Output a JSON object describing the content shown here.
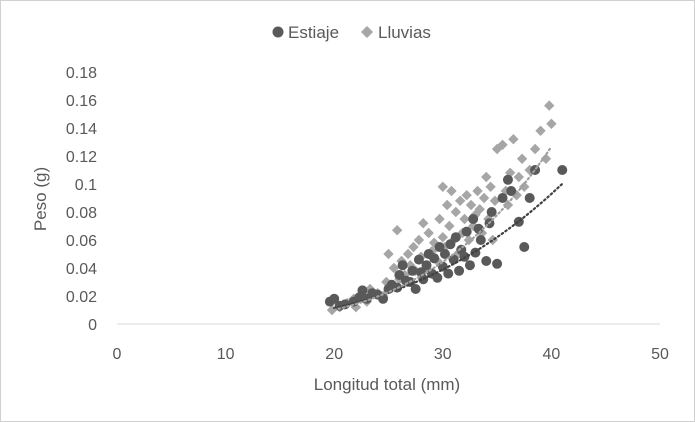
{
  "chart_data": {
    "type": "scatter",
    "title": "",
    "xlabel": "Longitud total (mm)",
    "ylabel": "Peso (g)",
    "xlim": [
      0,
      50
    ],
    "ylim": [
      0,
      0.18
    ],
    "x_ticks": [
      "0",
      "10",
      "20",
      "30",
      "40",
      "50"
    ],
    "y_ticks": [
      "0",
      "0.02",
      "0.04",
      "0.06",
      "0.08",
      "0.1",
      "0.12",
      "0.14",
      "0.16",
      "0.18"
    ],
    "grid": false,
    "legend_position": "top",
    "series": [
      {
        "name": "Estiaje",
        "marker": "circle",
        "color": "#595959",
        "trendline": {
          "type": "power",
          "style": "dotted",
          "x_range": [
            20,
            41
          ],
          "a": 1.3e-06,
          "b": 3.03
        },
        "points": [
          [
            19.6,
            0.016
          ],
          [
            20.0,
            0.018
          ],
          [
            20.5,
            0.013
          ],
          [
            21.0,
            0.014
          ],
          [
            21.8,
            0.016
          ],
          [
            22.3,
            0.019
          ],
          [
            22.6,
            0.024
          ],
          [
            23.0,
            0.018
          ],
          [
            23.5,
            0.022
          ],
          [
            24.0,
            0.021
          ],
          [
            24.5,
            0.018
          ],
          [
            25.0,
            0.025
          ],
          [
            25.3,
            0.028
          ],
          [
            25.8,
            0.026
          ],
          [
            26.0,
            0.035
          ],
          [
            26.3,
            0.042
          ],
          [
            26.6,
            0.031
          ],
          [
            27.0,
            0.03
          ],
          [
            27.2,
            0.038
          ],
          [
            27.5,
            0.025
          ],
          [
            27.8,
            0.046
          ],
          [
            28.0,
            0.037
          ],
          [
            28.2,
            0.032
          ],
          [
            28.5,
            0.042
          ],
          [
            28.7,
            0.05
          ],
          [
            29.0,
            0.036
          ],
          [
            29.2,
            0.047
          ],
          [
            29.5,
            0.033
          ],
          [
            29.7,
            0.055
          ],
          [
            30.0,
            0.041
          ],
          [
            30.2,
            0.05
          ],
          [
            30.5,
            0.036
          ],
          [
            30.7,
            0.057
          ],
          [
            31.0,
            0.046
          ],
          [
            31.2,
            0.062
          ],
          [
            31.5,
            0.038
          ],
          [
            31.7,
            0.053
          ],
          [
            32.0,
            0.048
          ],
          [
            32.2,
            0.066
          ],
          [
            32.5,
            0.042
          ],
          [
            32.8,
            0.075
          ],
          [
            33.0,
            0.051
          ],
          [
            33.3,
            0.068
          ],
          [
            33.5,
            0.06
          ],
          [
            34.0,
            0.045
          ],
          [
            34.3,
            0.072
          ],
          [
            34.5,
            0.08
          ],
          [
            35.0,
            0.043
          ],
          [
            35.5,
            0.09
          ],
          [
            36.0,
            0.103
          ],
          [
            36.3,
            0.095
          ],
          [
            37.0,
            0.073
          ],
          [
            37.5,
            0.055
          ],
          [
            38.0,
            0.09
          ],
          [
            38.5,
            0.11
          ],
          [
            41.0,
            0.11
          ]
        ]
      },
      {
        "name": "Lluvias",
        "marker": "diamond",
        "color": "#a6a6a6",
        "trendline": {
          "type": "power",
          "style": "dotted",
          "x_range": [
            20,
            40
          ],
          "a": 1.8e-07,
          "b": 3.65
        },
        "points": [
          [
            19.8,
            0.01
          ],
          [
            20.5,
            0.012
          ],
          [
            21.2,
            0.015
          ],
          [
            21.8,
            0.018
          ],
          [
            22.0,
            0.012
          ],
          [
            22.5,
            0.02
          ],
          [
            23.0,
            0.016
          ],
          [
            23.3,
            0.025
          ],
          [
            24.0,
            0.022
          ],
          [
            24.5,
            0.02
          ],
          [
            24.8,
            0.03
          ],
          [
            25.0,
            0.05
          ],
          [
            25.2,
            0.028
          ],
          [
            25.5,
            0.04
          ],
          [
            25.8,
            0.067
          ],
          [
            26.0,
            0.032
          ],
          [
            26.2,
            0.045
          ],
          [
            26.5,
            0.035
          ],
          [
            26.8,
            0.05
          ],
          [
            27.0,
            0.042
          ],
          [
            27.3,
            0.055
          ],
          [
            27.5,
            0.038
          ],
          [
            27.8,
            0.06
          ],
          [
            28.0,
            0.048
          ],
          [
            28.2,
            0.072
          ],
          [
            28.5,
            0.04
          ],
          [
            28.7,
            0.065
          ],
          [
            29.0,
            0.052
          ],
          [
            29.2,
            0.058
          ],
          [
            29.5,
            0.045
          ],
          [
            29.7,
            0.075
          ],
          [
            30.0,
            0.062
          ],
          [
            30.0,
            0.098
          ],
          [
            30.2,
            0.055
          ],
          [
            30.4,
            0.085
          ],
          [
            30.6,
            0.07
          ],
          [
            30.8,
            0.095
          ],
          [
            31.0,
            0.06
          ],
          [
            31.2,
            0.08
          ],
          [
            31.4,
            0.05
          ],
          [
            31.6,
            0.088
          ],
          [
            31.8,
            0.065
          ],
          [
            32.0,
            0.075
          ],
          [
            32.2,
            0.092
          ],
          [
            32.4,
            0.06
          ],
          [
            32.6,
            0.085
          ],
          [
            32.8,
            0.07
          ],
          [
            33.0,
            0.078
          ],
          [
            33.2,
            0.095
          ],
          [
            33.4,
            0.082
          ],
          [
            33.6,
            0.065
          ],
          [
            33.8,
            0.09
          ],
          [
            34.0,
            0.105
          ],
          [
            34.2,
            0.075
          ],
          [
            34.4,
            0.098
          ],
          [
            34.6,
            0.06
          ],
          [
            34.8,
            0.088
          ],
          [
            35.0,
            0.125
          ],
          [
            35.5,
            0.128
          ],
          [
            35.8,
            0.095
          ],
          [
            36.0,
            0.085
          ],
          [
            36.2,
            0.108
          ],
          [
            36.5,
            0.132
          ],
          [
            36.8,
            0.092
          ],
          [
            37.0,
            0.105
          ],
          [
            37.3,
            0.118
          ],
          [
            37.5,
            0.098
          ],
          [
            38.0,
            0.11
          ],
          [
            38.5,
            0.125
          ],
          [
            39.0,
            0.138
          ],
          [
            39.5,
            0.118
          ],
          [
            39.8,
            0.156
          ],
          [
            40.0,
            0.143
          ]
        ]
      }
    ]
  }
}
